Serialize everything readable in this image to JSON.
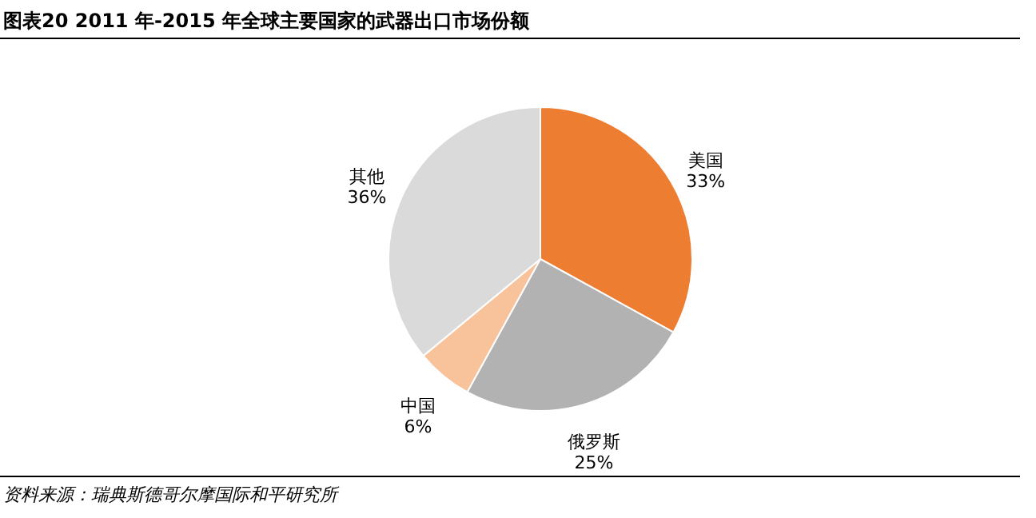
{
  "chart_data": {
    "type": "pie",
    "title": "图表20    2011 年-2015 年全球主要国家的武器出口市场份额",
    "categories": [
      "美国",
      "俄罗斯",
      "中国",
      "其他"
    ],
    "values": [
      33,
      25,
      6,
      36
    ],
    "value_labels": [
      "33%",
      "25%",
      "6%",
      "36%"
    ],
    "colors": [
      "#ed7d31",
      "#b2b2b2",
      "#f8c29b",
      "#dadada"
    ],
    "annotations": [
      "资料来源：瑞典斯德哥尔摩国际和平研究所"
    ]
  }
}
